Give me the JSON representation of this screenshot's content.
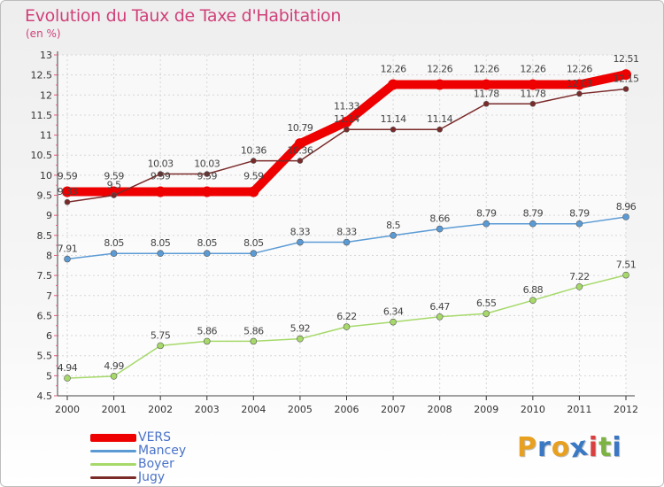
{
  "title": "Evolution du Taux de Taxe d'Habitation",
  "unit_label": "(en %)",
  "logo": {
    "letters": [
      "P",
      "r",
      "o",
      "x",
      "i",
      "t",
      "i"
    ],
    "colors": [
      "#e8a020",
      "#3b78c4",
      "#e8a020",
      "#3b78c4",
      "#d94040",
      "#7cb342",
      "#3b78c4"
    ]
  },
  "chart_data": {
    "type": "line",
    "x": [
      "2000",
      "2001",
      "2002",
      "2003",
      "2004",
      "2005",
      "2006",
      "2007",
      "2008",
      "2009",
      "2010",
      "2011",
      "2012"
    ],
    "ylim": [
      4.5,
      13
    ],
    "yticks": [
      "4.5",
      "5",
      "5.5",
      "6",
      "6.5",
      "7",
      "7.5",
      "8",
      "8.5",
      "9",
      "9.5",
      "10",
      "10.5",
      "11",
      "11.5",
      "12",
      "12.5",
      "13"
    ],
    "grid": true,
    "legend_position": "bottom-left",
    "series": [
      {
        "name": "VERS",
        "color": "#ee0000",
        "values": [
          9.59,
          9.59,
          9.59,
          9.59,
          9.59,
          10.79,
          11.33,
          12.26,
          12.26,
          12.26,
          12.26,
          12.26,
          12.51
        ],
        "labels": [
          "9.59",
          "9.59",
          "9.59",
          "9.59",
          "9.59",
          "10.79",
          "11.33",
          "12.26",
          "12.26",
          "12.26",
          "12.26",
          "12.26",
          "12.51"
        ]
      },
      {
        "name": "Mancey",
        "color": "#5b9bd5",
        "values": [
          7.91,
          8.05,
          8.05,
          8.05,
          8.05,
          8.33,
          8.33,
          8.5,
          8.66,
          8.79,
          8.79,
          8.79,
          8.96
        ],
        "labels": [
          "7.91",
          "8.05",
          "8.05",
          "8.05",
          "8.05",
          "8.33",
          "8.33",
          "8.5",
          "8.66",
          "8.79",
          "8.79",
          "8.79",
          "8.96"
        ]
      },
      {
        "name": "Boyer",
        "color": "#a6d96a",
        "values": [
          4.94,
          4.99,
          5.75,
          5.86,
          5.86,
          5.92,
          6.22,
          6.34,
          6.47,
          6.55,
          6.88,
          7.22,
          7.51
        ],
        "labels": [
          "4.94",
          "4.99",
          "5.75",
          "5.86",
          "5.86",
          "5.92",
          "6.22",
          "6.34",
          "6.47",
          "6.55",
          "6.88",
          "7.22",
          "7.51"
        ]
      },
      {
        "name": "Jugy",
        "color": "#7b2a2a",
        "values": [
          9.33,
          9.5,
          10.03,
          10.03,
          10.36,
          10.36,
          11.14,
          11.14,
          11.14,
          11.78,
          11.78,
          12.03,
          12.15
        ],
        "labels": [
          "9.33",
          "9.5",
          "10.03",
          "10.03",
          "10.36",
          "10.36",
          "11.14",
          "11.14",
          "11.14",
          "11.78",
          "11.78",
          "12.03",
          "12.15"
        ]
      }
    ]
  }
}
